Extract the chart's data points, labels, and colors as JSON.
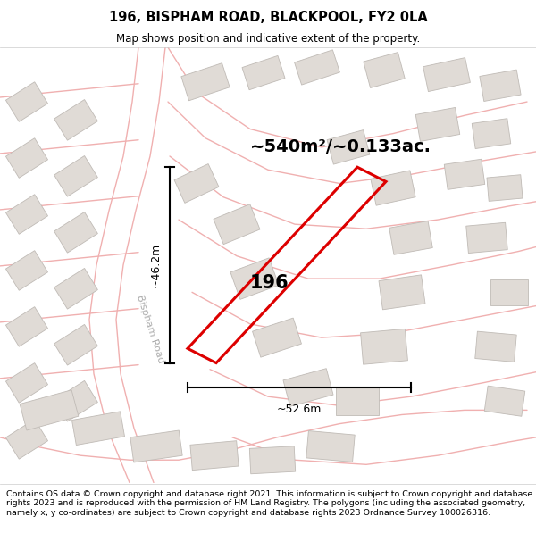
{
  "title": "196, BISPHAM ROAD, BLACKPOOL, FY2 0LA",
  "subtitle": "Map shows position and indicative extent of the property.",
  "area_label": "~540m²/~0.133ac.",
  "property_number": "196",
  "dim_width": "~52.6m",
  "dim_height": "~46.2m",
  "road_label": "Bispham Road",
  "background_color": "#ffffff",
  "map_bg": "#f8f8f8",
  "property_color": "#dd0000",
  "road_line_color": "#f0b0b0",
  "road_fill_color": "#ffffff",
  "block_color": "#e0dcd8",
  "block_edge_color": "#c8c4c0",
  "footer_text": "Contains OS data © Crown copyright and database right 2021. This information is subject to Crown copyright and database rights 2023 and is reproduced with the permission of HM Land Registry. The polygons (including the associated geometry, namely x, y co-ordinates) are subject to Crown copyright and database rights 2023 Ordnance Survey 100026316.",
  "figsize": [
    6.0,
    6.25
  ],
  "dpi": 100
}
